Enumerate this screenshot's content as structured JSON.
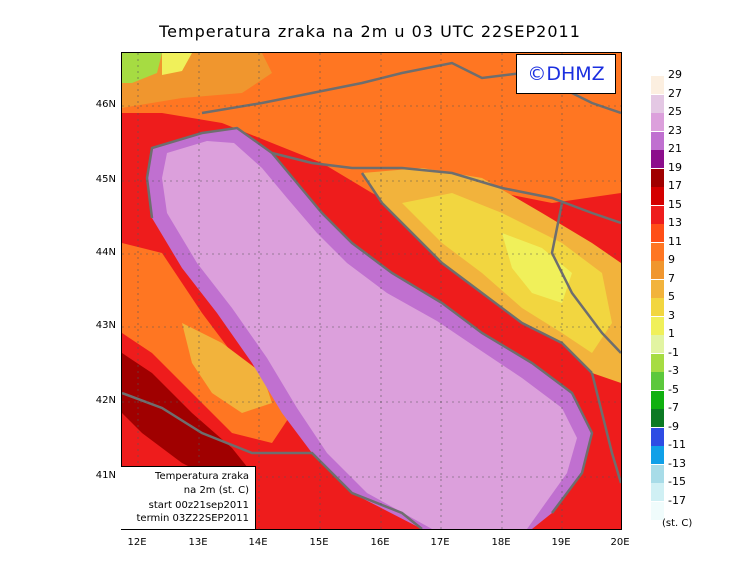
{
  "title": "Temperatura zraka na 2m u 03 UTC 22SEP2011",
  "logo_text": "©DHMZ",
  "lat_labels": [
    "46N",
    "45N",
    "44N",
    "43N",
    "42N",
    "41N"
  ],
  "lon_labels": [
    "12E",
    "13E",
    "14E",
    "15E",
    "16E",
    "17E",
    "18E",
    "19E",
    "20E"
  ],
  "info_box": {
    "line1": "Temperatura zraka",
    "line2": "na 2m (st. C)",
    "line3": "start 00z21sep2011",
    "line4": "termin 03Z22SEP2011"
  },
  "legend": {
    "unit": "(st. C)",
    "labels": [
      "29",
      "27",
      "25",
      "23",
      "21",
      "19",
      "17",
      "15",
      "13",
      "11",
      "9",
      "7",
      "5",
      "3",
      "1",
      "-1",
      "-3",
      "-5",
      "-7",
      "-9",
      "-11",
      "-13",
      "-15",
      "-17"
    ],
    "colors": [
      "#fcefe0",
      "#e4c8e4",
      "#dca0dc",
      "#c070d0",
      "#8c0e8c",
      "#a00000",
      "#d40000",
      "#ee1c1c",
      "#ff4e16",
      "#ff7622",
      "#f0962e",
      "#f2b33c",
      "#f2d640",
      "#f0f05a",
      "#e2f4a2",
      "#a6dc42",
      "#5cc83c",
      "#10b010",
      "#0c7a24",
      "#2e4ce4",
      "#10a0e8",
      "#a8dce8",
      "#d0f0f4",
      "#f0fcfc"
    ]
  },
  "colors": {
    "sea_warm": "#dca0dc",
    "coast_band": "#c070d0",
    "land_hot": "#ee1c1c",
    "land_mid": "#ff7622",
    "land_cool": "#f2d640",
    "border_line": "#6e6e6e",
    "logo_text": "#1b2fe0"
  }
}
